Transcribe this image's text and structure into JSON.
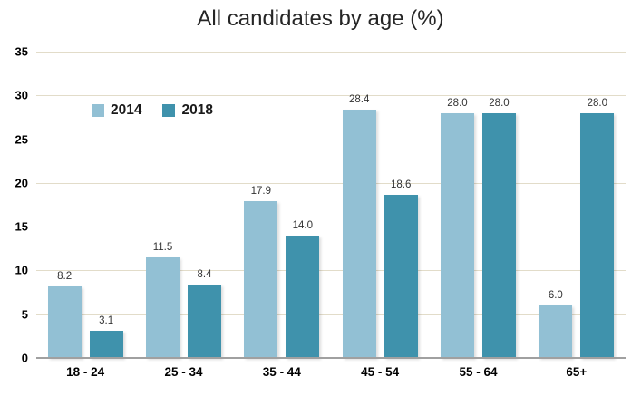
{
  "chart_data": {
    "type": "bar",
    "title": "All candidates by age (%)",
    "xlabel": "",
    "ylabel": "",
    "categories": [
      "18 - 24",
      "25 - 34",
      "35 - 44",
      "45 - 54",
      "55 - 64",
      "65+"
    ],
    "series": [
      {
        "name": "2014",
        "color": "#92C0D4",
        "values": [
          8.2,
          11.5,
          17.9,
          28.4,
          28.0,
          6.0
        ]
      },
      {
        "name": "2018",
        "color": "#3F92AC",
        "values": [
          3.1,
          8.4,
          14.0,
          18.6,
          28.0,
          28.0
        ]
      }
    ],
    "ylim": [
      0,
      35
    ],
    "yticks": [
      0,
      5,
      10,
      15,
      20,
      25,
      30,
      35
    ],
    "grid": true,
    "data_labels": true,
    "data_label_decimals": 1,
    "legend_position": "inside-top-left",
    "colors": {
      "gridline": "#E2DCC9",
      "baseline": "#A0A0A0",
      "title_text": "#262626",
      "axis_text": "#000000",
      "data_label_text": "#333333",
      "background": "#FFFFFF"
    }
  }
}
